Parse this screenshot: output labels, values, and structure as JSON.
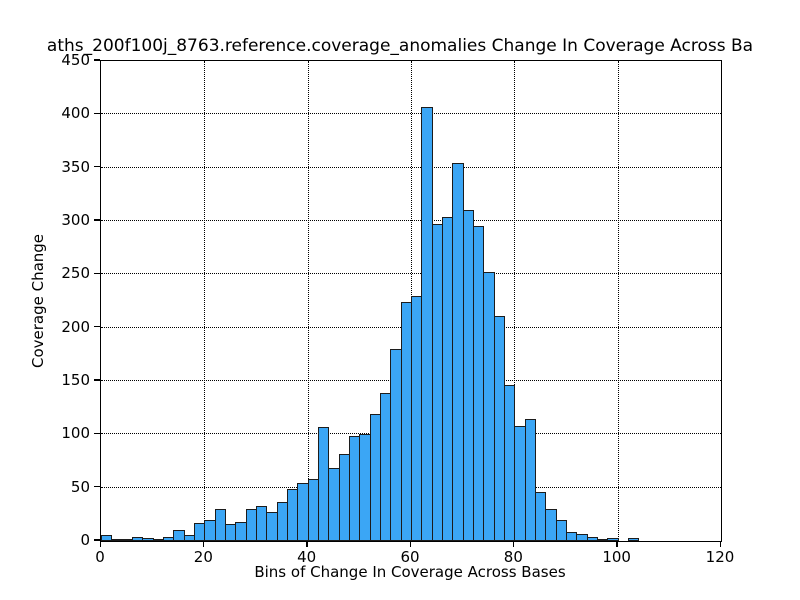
{
  "title": "aths_200f100j_8763.reference.coverage_anomalies Change In Coverage Across Ba",
  "axes": {
    "xlabel": "Bins of Change In Coverage Across Bases",
    "ylabel": "Coverage Change"
  },
  "chart_data": {
    "type": "bar",
    "subtype": "histogram",
    "title": "aths_200f100j_8763.reference.coverage_anomalies Change In Coverage Across Ba",
    "xlabel": "Bins of Change In Coverage Across Bases",
    "ylabel": "Coverage Change",
    "bin_start": 0,
    "bin_width": 2,
    "values": [
      6,
      1,
      2,
      4,
      3,
      1,
      4,
      10,
      6,
      17,
      20,
      30,
      16,
      18,
      30,
      33,
      27,
      37,
      49,
      54,
      58,
      107,
      68,
      82,
      98,
      100,
      119,
      139,
      180,
      224,
      230,
      407,
      297,
      304,
      354,
      310,
      295,
      252,
      211,
      146,
      108,
      114,
      46,
      30,
      20,
      8,
      7,
      4,
      2,
      3,
      0,
      3
    ],
    "xlim": [
      0,
      120
    ],
    "ylim": [
      0,
      450
    ],
    "x_ticks": [
      0,
      20,
      40,
      60,
      80,
      100,
      120
    ],
    "y_ticks": [
      0,
      50,
      100,
      150,
      200,
      250,
      300,
      350,
      400,
      450
    ],
    "grid": "dotted",
    "legend": "none",
    "bar_color": "#3BA6F5",
    "bar_edge_color": "#1c1c1c"
  }
}
